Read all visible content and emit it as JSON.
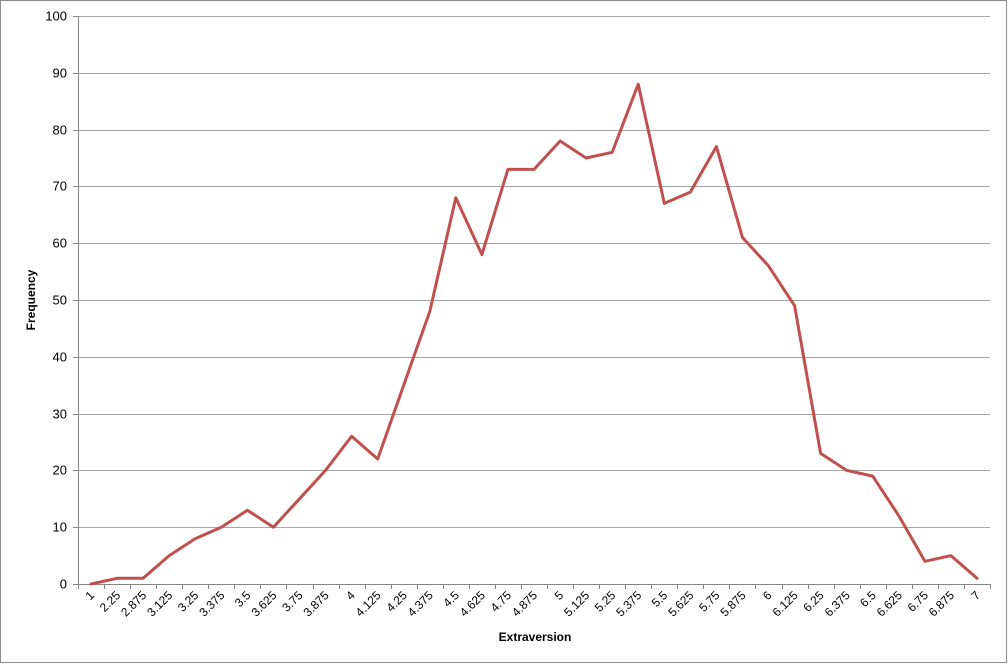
{
  "chart_data": {
    "type": "line",
    "title": "",
    "xlabel": "Extraversion",
    "ylabel": "Frequency",
    "ylim": [
      0,
      100
    ],
    "ytick_step": 10,
    "grid": true,
    "legend": "none",
    "line_color": "#c0504d",
    "categories": [
      "1",
      "2.25",
      "2.875",
      "3.125",
      "3.25",
      "3.375",
      "3.5",
      "3.625",
      "3.75",
      "3.875",
      "4",
      "4.125",
      "4.25",
      "4.375",
      "4.5",
      "4.625",
      "4.75",
      "4.875",
      "5",
      "5.125",
      "5.25",
      "5.375",
      "5.5",
      "5.625",
      "5.75",
      "5.875",
      "6",
      "6.125",
      "6.25",
      "6.375",
      "6.5",
      "6.625",
      "6.75",
      "6.875",
      "7"
    ],
    "series": [
      {
        "values": [
          0,
          1,
          1,
          5,
          8,
          10,
          13,
          10,
          15,
          20,
          26,
          22,
          35,
          48,
          68,
          58,
          73,
          73,
          78,
          75,
          76,
          88,
          67,
          69,
          77,
          61,
          56,
          49,
          23,
          20,
          19,
          12,
          4,
          5,
          1
        ]
      }
    ]
  }
}
